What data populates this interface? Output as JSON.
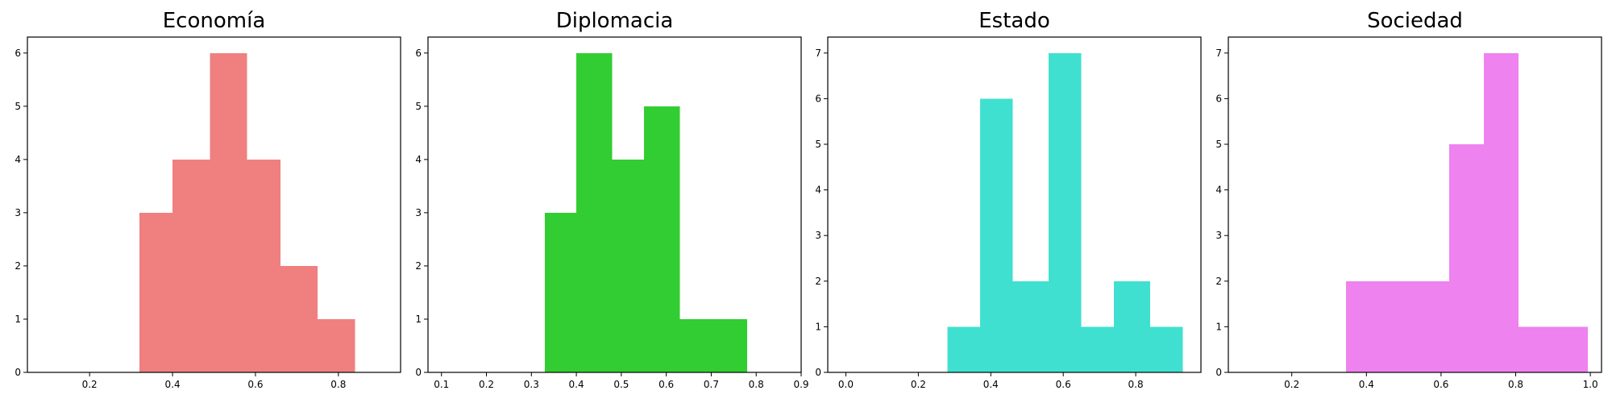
{
  "chart_data": [
    {
      "type": "bar",
      "title": "Economía",
      "color": "#f08080",
      "xlim": [
        0.05,
        0.95
      ],
      "ylim": [
        0,
        6.3
      ],
      "xticks": [
        0.2,
        0.4,
        0.6,
        0.8
      ],
      "xtick_labels": [
        "0.2",
        "0.4",
        "0.6",
        "0.8"
      ],
      "yticks": [
        0,
        1,
        2,
        3,
        4,
        5,
        6
      ],
      "ytick_labels": [
        "0",
        "1",
        "2",
        "3",
        "4",
        "5",
        "6"
      ],
      "bins": [
        {
          "x0": 0.32,
          "x1": 0.4,
          "count": 3
        },
        {
          "x0": 0.4,
          "x1": 0.49,
          "count": 4
        },
        {
          "x0": 0.49,
          "x1": 0.58,
          "count": 6
        },
        {
          "x0": 0.58,
          "x1": 0.66,
          "count": 4
        },
        {
          "x0": 0.66,
          "x1": 0.75,
          "count": 2
        },
        {
          "x0": 0.75,
          "x1": 0.84,
          "count": 1
        }
      ]
    },
    {
      "type": "bar",
      "title": "Diplomacia",
      "color": "#32cd32",
      "xlim": [
        0.07,
        0.9
      ],
      "ylim": [
        0,
        6.3
      ],
      "xticks": [
        0.1,
        0.2,
        0.3,
        0.4,
        0.5,
        0.6,
        0.7,
        0.8,
        0.9
      ],
      "xtick_labels": [
        "0.1",
        "0.2",
        "0.3",
        "0.4",
        "0.5",
        "0.6",
        "0.7",
        "0.8",
        "0.9"
      ],
      "yticks": [
        0,
        1,
        2,
        3,
        4,
        5,
        6
      ],
      "ytick_labels": [
        "0",
        "1",
        "2",
        "3",
        "4",
        "5",
        "6"
      ],
      "bins": [
        {
          "x0": 0.33,
          "x1": 0.4,
          "count": 3
        },
        {
          "x0": 0.4,
          "x1": 0.48,
          "count": 6
        },
        {
          "x0": 0.48,
          "x1": 0.55,
          "count": 4
        },
        {
          "x0": 0.55,
          "x1": 0.63,
          "count": 5
        },
        {
          "x0": 0.63,
          "x1": 0.71,
          "count": 1
        },
        {
          "x0": 0.71,
          "x1": 0.78,
          "count": 1
        }
      ]
    },
    {
      "type": "bar",
      "title": "Estado",
      "color": "#40e0d0",
      "xlim": [
        -0.05,
        0.98
      ],
      "ylim": [
        0,
        7.35
      ],
      "xticks": [
        0.0,
        0.2,
        0.4,
        0.6,
        0.8
      ],
      "xtick_labels": [
        "0.0",
        "0.2",
        "0.4",
        "0.6",
        "0.8"
      ],
      "yticks": [
        0,
        1,
        2,
        3,
        4,
        5,
        6,
        7
      ],
      "ytick_labels": [
        "0",
        "1",
        "2",
        "3",
        "4",
        "5",
        "6",
        "7"
      ],
      "bins": [
        {
          "x0": 0.28,
          "x1": 0.37,
          "count": 1
        },
        {
          "x0": 0.37,
          "x1": 0.46,
          "count": 6
        },
        {
          "x0": 0.46,
          "x1": 0.56,
          "count": 2
        },
        {
          "x0": 0.56,
          "x1": 0.65,
          "count": 7
        },
        {
          "x0": 0.65,
          "x1": 0.74,
          "count": 1
        },
        {
          "x0": 0.74,
          "x1": 0.84,
          "count": 2
        },
        {
          "x0": 0.84,
          "x1": 0.93,
          "count": 1
        }
      ]
    },
    {
      "type": "bar",
      "title": "Sociedad",
      "color": "#ee82ee",
      "xlim": [
        0.03,
        1.03
      ],
      "ylim": [
        0,
        7.35
      ],
      "xticks": [
        0.2,
        0.4,
        0.6,
        0.8,
        1.0
      ],
      "xtick_labels": [
        "0.2",
        "0.4",
        "0.6",
        "0.8",
        "1.0"
      ],
      "yticks": [
        0,
        1,
        2,
        3,
        4,
        5,
        6,
        7
      ],
      "ytick_labels": [
        "0",
        "1",
        "2",
        "3",
        "4",
        "5",
        "6",
        "7"
      ],
      "bins": [
        {
          "x0": 0.345,
          "x1": 0.437,
          "count": 2
        },
        {
          "x0": 0.437,
          "x1": 0.53,
          "count": 2
        },
        {
          "x0": 0.53,
          "x1": 0.622,
          "count": 2
        },
        {
          "x0": 0.622,
          "x1": 0.715,
          "count": 5
        },
        {
          "x0": 0.715,
          "x1": 0.808,
          "count": 7
        },
        {
          "x0": 0.808,
          "x1": 0.9,
          "count": 1
        },
        {
          "x0": 0.9,
          "x1": 0.993,
          "count": 1
        }
      ]
    }
  ]
}
